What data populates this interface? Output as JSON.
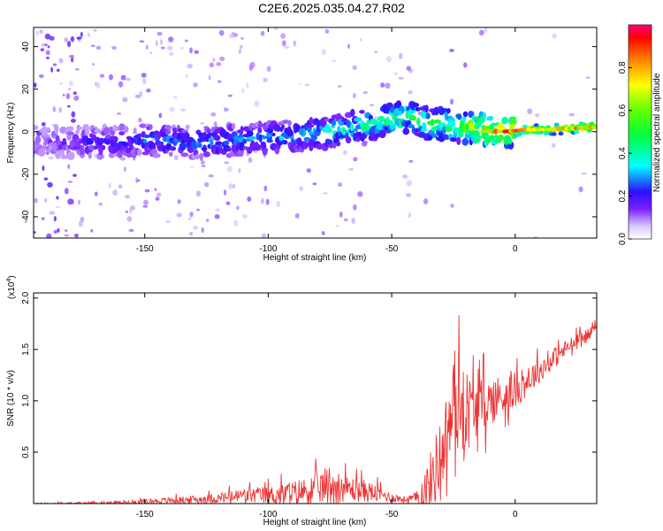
{
  "title": "C2E6.2025.035.04.27.R02",
  "chart_data": [
    {
      "type": "heatmap",
      "xlabel": "Height of straight line (km)",
      "ylabel": "Frequency (Hz)",
      "xlim": [
        -195,
        33
      ],
      "ylim": [
        -50,
        49
      ],
      "xticks": [
        -150,
        -100,
        -50,
        0
      ],
      "xtick_labels": [
        "-150",
        "-100",
        "-50",
        "0"
      ],
      "yticks": [
        40,
        20,
        0,
        -20,
        -40
      ],
      "ytick_labels": [
        "40",
        "20",
        "0",
        "-20",
        "-40"
      ],
      "colorbar": {
        "label": "Normalized spectral amplitude",
        "range": [
          0.0,
          1.0
        ],
        "ticks": [
          0.0,
          0.2,
          0.4,
          0.6,
          0.8
        ],
        "tick_labels": [
          "0.0",
          "0.2",
          "0.4",
          "0.6",
          "0.8"
        ]
      },
      "ridge": {
        "x": [
          -185,
          -170,
          -150,
          -130,
          -110,
          -90,
          -75,
          -60,
          -50,
          -42,
          -35,
          -25,
          -15,
          -5,
          5,
          15,
          30
        ],
        "y": [
          -5,
          -5,
          -4,
          -5,
          -4,
          -2,
          0,
          3,
          6,
          7,
          4,
          3,
          1,
          0,
          1,
          1,
          2
        ],
        "amplitude": [
          0.15,
          0.2,
          0.25,
          0.28,
          0.27,
          0.3,
          0.35,
          0.4,
          0.45,
          0.45,
          0.48,
          0.5,
          0.7,
          0.75,
          0.8,
          0.85,
          0.85
        ]
      },
      "grid": false
    },
    {
      "type": "line",
      "xlabel": "Height of straight line (km)",
      "ylabel": "SNR (10 * v/v)",
      "y_multiplier_label": "(x10",
      "y_multiplier_exp": "4",
      "xlim": [
        -195,
        33
      ],
      "ylim": [
        0,
        2.05
      ],
      "xticks": [
        -150,
        -100,
        -50,
        0
      ],
      "xtick_labels": [
        "-150",
        "-100",
        "-50",
        "0"
      ],
      "yticks": [
        0.5,
        1.0,
        1.5,
        2.0
      ],
      "ytick_labels": [
        "0.5",
        "1.0",
        "1.5",
        "2.0"
      ],
      "series": [
        {
          "color": "#ee3333",
          "envelope": {
            "x": [
              -195,
              -180,
              -160,
              -140,
              -120,
              -110,
              -100,
              -90,
              -80,
              -75,
              -70,
              -60,
              -50,
              -45,
              -40,
              -35,
              -30,
              -25,
              -22,
              -20,
              -15,
              -10,
              -5,
              0,
              10,
              20,
              30,
              33
            ],
            "base": [
              0.0,
              0.0,
              0.01,
              0.03,
              0.05,
              0.08,
              0.08,
              0.1,
              0.15,
              0.18,
              0.15,
              0.12,
              0.06,
              0.04,
              0.05,
              0.15,
              0.5,
              0.9,
              1.0,
              0.9,
              0.95,
              1.0,
              1.05,
              1.1,
              1.3,
              1.5,
              1.65,
              1.75
            ],
            "amp": [
              0.01,
              0.02,
              0.03,
              0.05,
              0.08,
              0.12,
              0.15,
              0.2,
              0.25,
              0.35,
              0.22,
              0.18,
              0.08,
              0.06,
              0.1,
              0.5,
              0.6,
              0.7,
              0.8,
              0.7,
              0.45,
              0.4,
              0.35,
              0.3,
              0.2,
              0.15,
              0.1,
              0.05
            ]
          }
        }
      ],
      "grid": false
    }
  ]
}
